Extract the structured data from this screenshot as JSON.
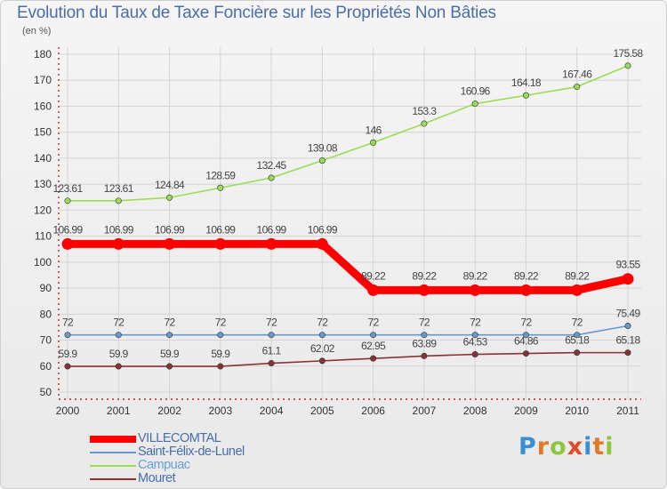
{
  "chart_data": {
    "type": "line",
    "title": "Evolution du Taux de Taxe Foncière sur les Propriétés Non Bâties",
    "ylabel": "(en %)",
    "xlabel": "",
    "categories": [
      "2000",
      "2001",
      "2002",
      "2003",
      "2004",
      "2005",
      "2006",
      "2007",
      "2008",
      "2009",
      "2010",
      "2011"
    ],
    "ylim": [
      50,
      180
    ],
    "y_ticks": [
      50,
      60,
      70,
      80,
      90,
      100,
      110,
      120,
      130,
      140,
      150,
      160,
      170,
      180
    ],
    "grid": true,
    "legend_position": "bottom-left",
    "series": [
      {
        "name": "VILLECOMTAL",
        "color": "#ff0000",
        "emphasis": true,
        "values": [
          106.99,
          106.99,
          106.99,
          106.99,
          106.99,
          106.99,
          89.22,
          89.22,
          89.22,
          89.22,
          89.22,
          93.55
        ],
        "labels": [
          "106.99",
          "106.99",
          "106.99",
          "106.99",
          "106.99",
          "106.99",
          "89.22",
          "89.22",
          "89.22",
          "89.22",
          "89.22",
          "93.55"
        ]
      },
      {
        "name": "Saint-Félix-de-Lunel",
        "color": "#6699cc",
        "values": [
          72,
          72,
          72,
          72,
          72,
          72,
          72,
          72,
          72,
          72,
          72,
          75.49
        ],
        "labels": [
          "72",
          "72",
          "72",
          "72",
          "72",
          "72",
          "72",
          "72",
          "72",
          "72",
          "72",
          "75.49"
        ]
      },
      {
        "name": "Campuac",
        "color": "#99dd55",
        "values": [
          123.61,
          123.61,
          124.84,
          128.59,
          132.45,
          139.08,
          146,
          153.3,
          160.96,
          164.18,
          167.46,
          175.58
        ],
        "labels": [
          "123.61",
          "123.61",
          "124.84",
          "128.59",
          "132.45",
          "139.08",
          "146",
          "153.3",
          "160.96",
          "164.18",
          "167.46",
          "175.58"
        ]
      },
      {
        "name": "Mouret",
        "color": "#883333",
        "values": [
          59.9,
          59.9,
          59.9,
          59.9,
          61.1,
          62.02,
          62.95,
          63.89,
          64.53,
          64.86,
          65.18,
          65.18
        ],
        "labels": [
          "59.9",
          "59.9",
          "59.9",
          "59.9",
          "61.1",
          "62.02",
          "62.95",
          "63.89",
          "64.53",
          "64.86",
          "65.18",
          "65.18"
        ]
      }
    ]
  },
  "branding": {
    "logo_letters": [
      {
        "ch": "P",
        "color": "#3a8fd0"
      },
      {
        "ch": "r",
        "color": "#e07a2a"
      },
      {
        "ch": "o",
        "color": "#8cc63f"
      },
      {
        "ch": "x",
        "color": "#e04a2a"
      },
      {
        "ch": "i",
        "color": "#3a8fd0"
      },
      {
        "ch": "t",
        "color": "#e07a2a"
      },
      {
        "ch": "i",
        "color": "#8cc63f"
      }
    ]
  }
}
